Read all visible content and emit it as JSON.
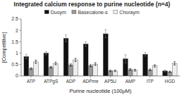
{
  "chart_data": {
    "type": "bar",
    "title": "Integrated calcium response to purine nucleotide (n=4)",
    "xlabel": "Purine nucleotide (100μM)",
    "ylabel": "[Competitive]",
    "categories": [
      "ATP",
      "ATPgS",
      "ADP",
      "ADPme",
      "AP5U",
      "AMP",
      "ITP",
      "HGD"
    ],
    "series": [
      {
        "name": "Duoym",
        "color": "#111111",
        "values": [
          0.85,
          1.0,
          1.65,
          1.4,
          1.85,
          0.75,
          0.95,
          0.22
        ],
        "errors": [
          0.1,
          0.07,
          0.15,
          0.1,
          0.18,
          0.18,
          0.08,
          0.04
        ]
      },
      {
        "name": "Basecalone-s",
        "color": "#999999",
        "values": [
          0.32,
          0.38,
          0.48,
          0.45,
          0.22,
          0.28,
          0.27,
          0.18
        ],
        "errors": [
          0.04,
          0.04,
          0.05,
          0.05,
          0.03,
          0.04,
          0.04,
          0.03
        ]
      },
      {
        "name": "Choraym",
        "color": "#eeeeee",
        "values": [
          0.62,
          0.55,
          0.7,
          0.52,
          0.22,
          0.25,
          0.44,
          0.55
        ],
        "errors": [
          0.07,
          0.06,
          0.07,
          0.06,
          0.03,
          0.04,
          0.05,
          0.07
        ]
      }
    ],
    "ylim": [
      0,
      2.5
    ],
    "yticks": [
      0,
      0.5,
      1,
      1.5,
      2,
      2.5
    ],
    "grid": false,
    "legend": "top"
  }
}
